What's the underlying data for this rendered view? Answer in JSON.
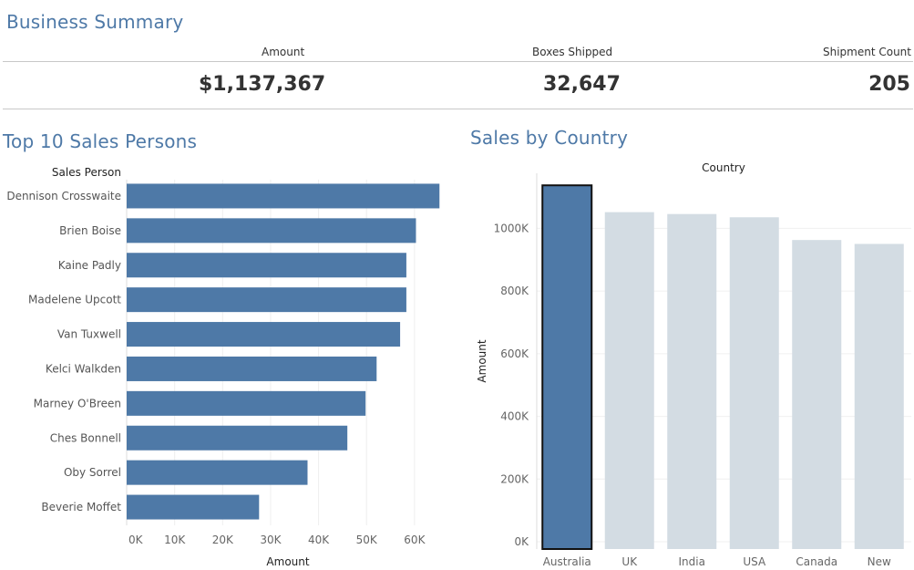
{
  "summary": {
    "title": "Business Summary",
    "kpis": [
      {
        "label": "Amount",
        "value": "$1,137,367"
      },
      {
        "label": "Boxes Shipped",
        "value": "32,647"
      },
      {
        "label": "Shipment Count",
        "value": "205"
      }
    ]
  },
  "colors": {
    "accent": "#4e79a7",
    "muted": "#d3dce3",
    "title": "#4e79a7"
  },
  "chart_data": [
    {
      "type": "bar",
      "orientation": "horizontal",
      "title": "Top 10 Sales Persons",
      "category_header": "Sales Person",
      "xlabel": "Amount",
      "ylabel": "",
      "categories": [
        "Dennison Crosswaite",
        "Brien Boise",
        "Kaine Padly",
        "Madelene Upcott",
        "Van Tuxwell",
        "Kelci Walkden",
        "Marney O'Breen",
        "Ches Bonnell",
        "Oby Sorrel",
        "Beverie Moffet"
      ],
      "values": [
        65200,
        60300,
        58300,
        58300,
        57000,
        52100,
        49800,
        46000,
        37700,
        27600
      ],
      "xlim": [
        0,
        68000
      ],
      "xticks": [
        "0K",
        "10K",
        "20K",
        "30K",
        "40K",
        "50K",
        "60K"
      ],
      "grid": true
    },
    {
      "type": "bar",
      "orientation": "vertical",
      "title": "Sales by Country",
      "category_header": "Country",
      "xlabel": "",
      "ylabel": "Amount",
      "categories": [
        "Australia",
        "UK",
        "India",
        "USA",
        "Canada",
        "New"
      ],
      "values": [
        1137367,
        1051792,
        1045800,
        1035349,
        962899,
        950418
      ],
      "highlighted": "Australia",
      "ylim": [
        0,
        1250000
      ],
      "yticks": [
        "0K",
        "200K",
        "400K",
        "600K",
        "800K",
        "1000K"
      ],
      "grid": true
    }
  ]
}
